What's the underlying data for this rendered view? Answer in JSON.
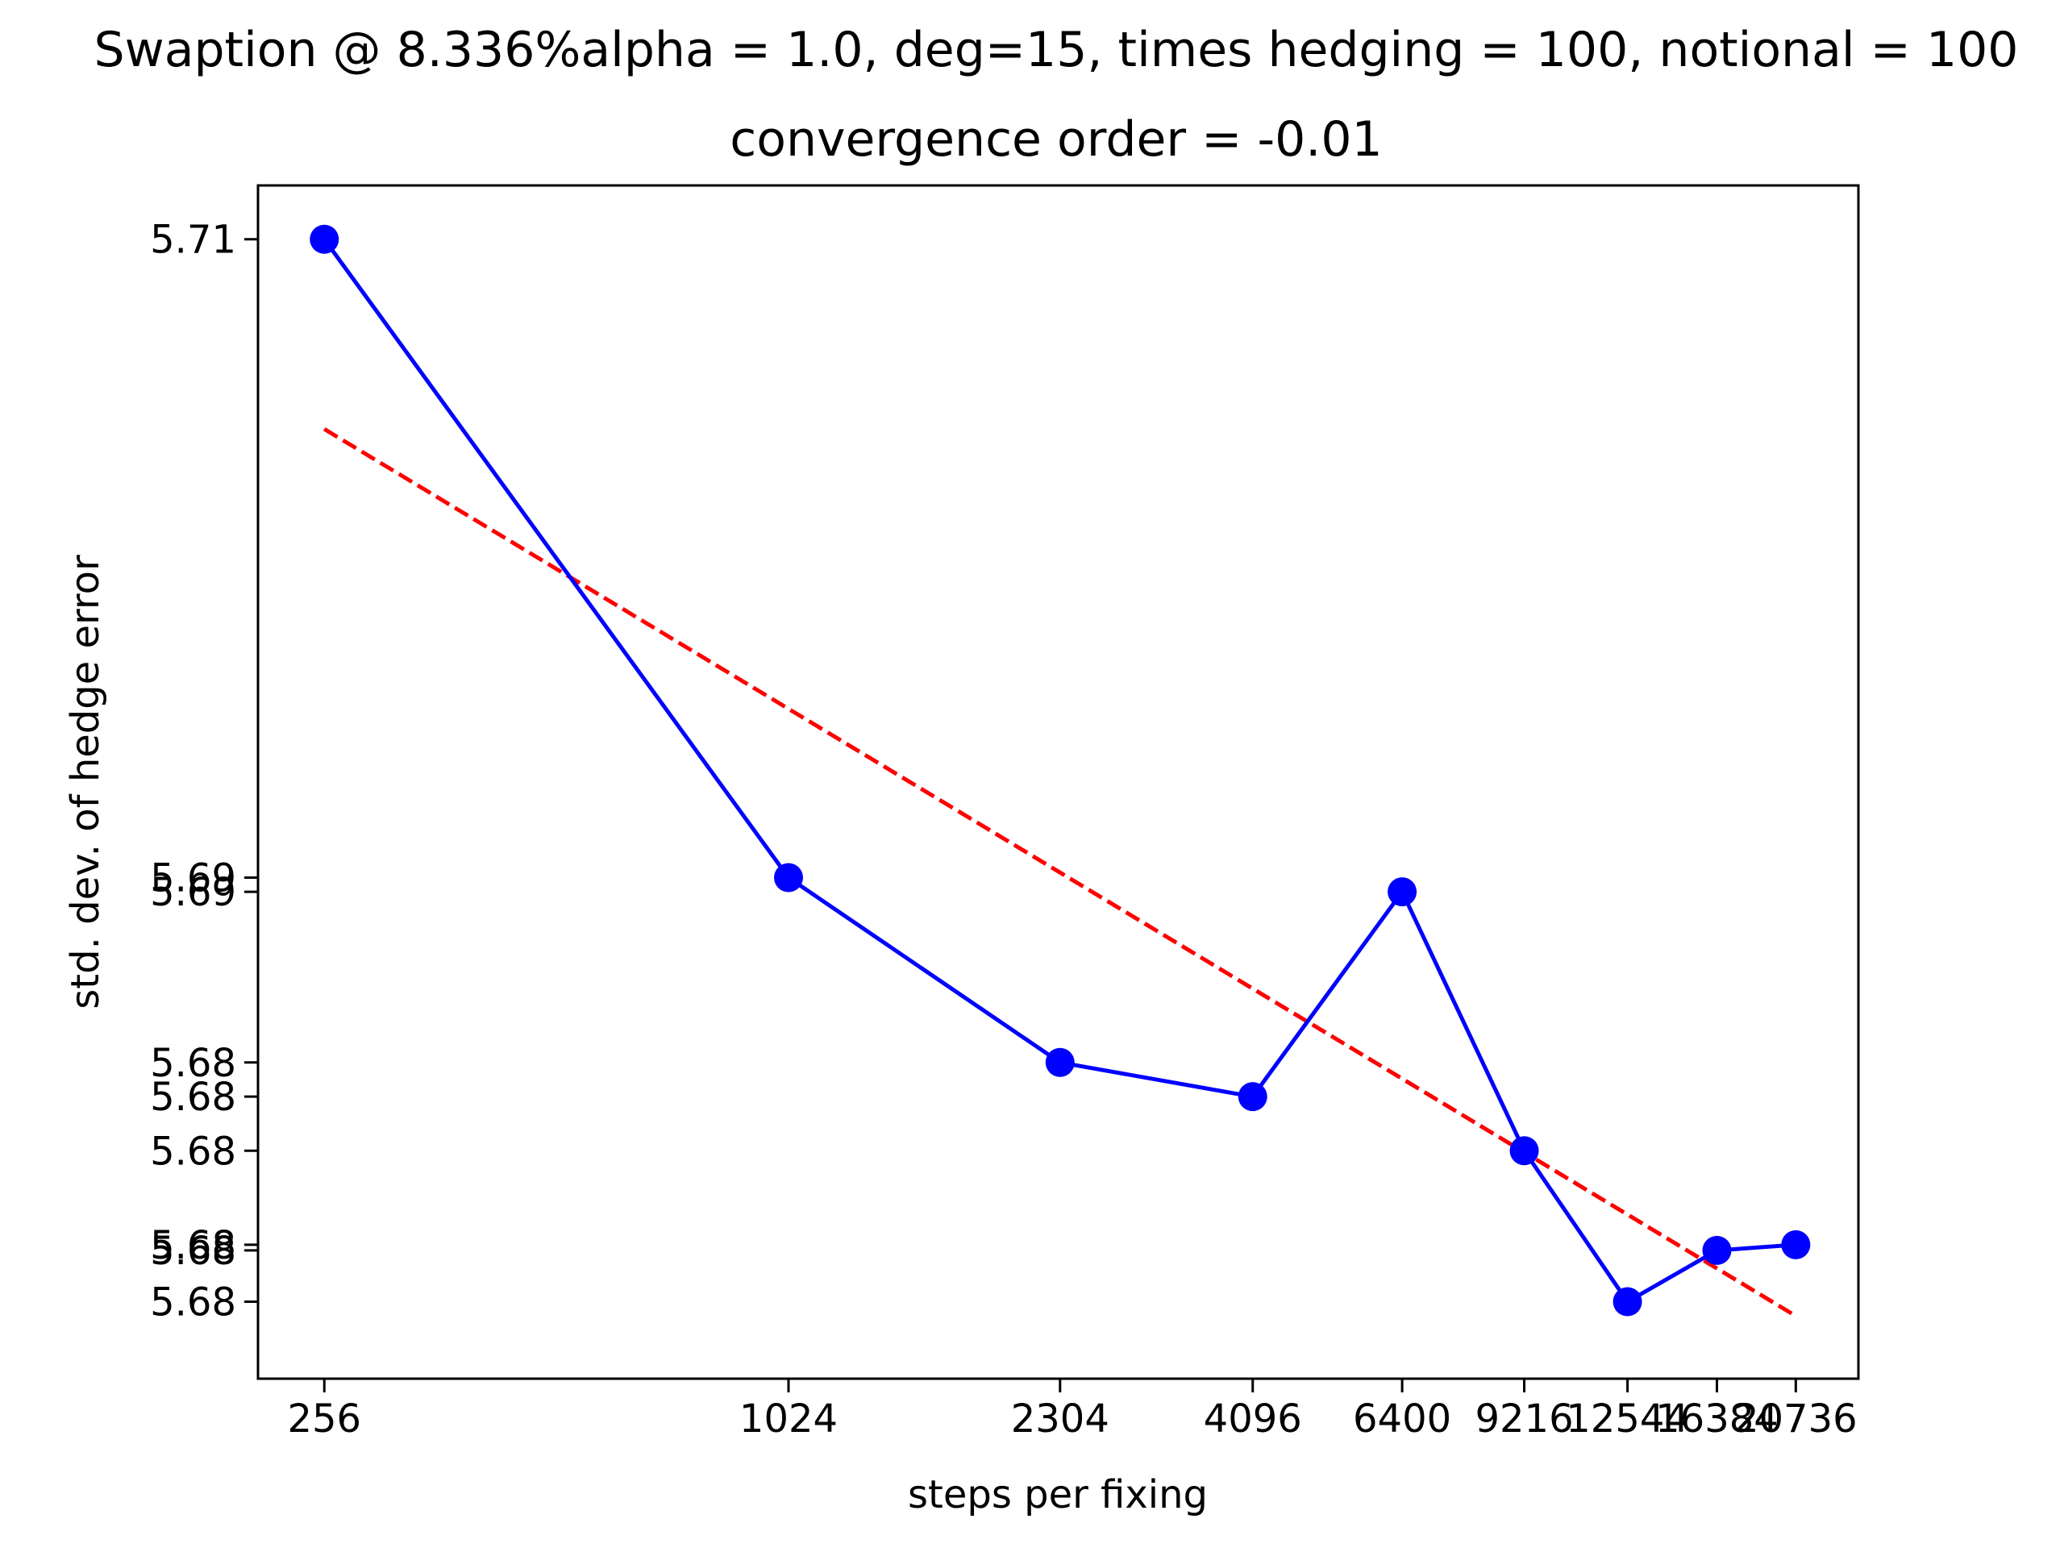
{
  "chart_data": {
    "type": "line",
    "title": "Swaption @ 8.336%alpha = 1.0, deg=15, times hedging = 100, notional = 100",
    "subtitle": "convergence order = -0.01",
    "xlabel": "steps per fixing",
    "ylabel": "std. dev. of hedge error",
    "x_scale": "log",
    "y_scale": "log",
    "grid": false,
    "legend": "none",
    "x_ticks": [
      256,
      1024,
      2304,
      4096,
      6400,
      9216,
      12544,
      16384,
      20736
    ],
    "x_tick_labels": [
      "256",
      "1024",
      "2304",
      "4096",
      "6400",
      "9216",
      "12544",
      "16384",
      "20736"
    ],
    "y_ticks": [
      5.7103,
      5.6878,
      5.6873,
      5.6813,
      5.6801,
      5.6782,
      5.6749,
      5.6747,
      5.6729
    ],
    "y_tick_labels": [
      "5.71",
      "5.69",
      "5.69",
      "5.68",
      "5.68",
      "5.68",
      "5.68",
      "5.68",
      "5.68"
    ],
    "xlim": [
      210,
      25000
    ],
    "ylim": [
      5.6702,
      5.7122
    ],
    "series": [
      {
        "values": [
          {
            "x": 256,
            "y": 5.7103
          },
          {
            "x": 1024,
            "y": 5.6878
          },
          {
            "x": 2304,
            "y": 5.6813
          },
          {
            "x": 4096,
            "y": 5.6801
          },
          {
            "x": 6400,
            "y": 5.6873
          },
          {
            "x": 9216,
            "y": 5.6782
          },
          {
            "x": 12544,
            "y": 5.6729
          },
          {
            "x": 16384,
            "y": 5.6747
          },
          {
            "x": 20736,
            "y": 5.6749
          }
        ],
        "color": "#0000ff",
        "style": "solid",
        "marker": "circle"
      },
      {
        "values": [
          {
            "x": 256,
            "y": 5.7036
          },
          {
            "x": 20736,
            "y": 5.6724
          }
        ],
        "color": "#ff0000",
        "style": "dashed",
        "marker": "none"
      }
    ]
  }
}
